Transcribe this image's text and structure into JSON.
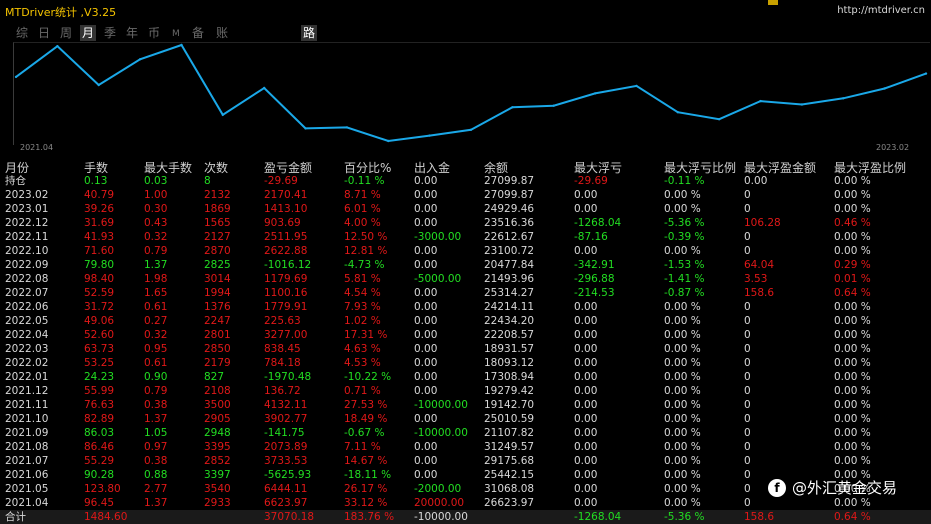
{
  "header": {
    "app_title": "MTDriver统计 ,V3.25",
    "url": "http://mtdriver.cn"
  },
  "tabs": [
    {
      "label": "综"
    },
    {
      "label": "日"
    },
    {
      "label": "周"
    },
    {
      "label": "月"
    },
    {
      "label": "季"
    },
    {
      "label": "年"
    },
    {
      "label": "币"
    },
    {
      "label": "M"
    },
    {
      "label": "备"
    },
    {
      "label": "账户"
    },
    {
      "label": "路径"
    }
  ],
  "chart_data": {
    "type": "line",
    "x_start_label": "2021.04",
    "x_end_label": "2023.02",
    "x": [
      "2021.04",
      "2021.05",
      "2021.06",
      "2021.07",
      "2021.08",
      "2021.09",
      "2021.10",
      "2021.11",
      "2021.12",
      "2022.01",
      "2022.02",
      "2022.03",
      "2022.04",
      "2022.05",
      "2022.06",
      "2022.07",
      "2022.08",
      "2022.09",
      "2022.10",
      "2022.11",
      "2022.12",
      "2023.01",
      "2023.02"
    ],
    "series": [
      {
        "values": [
          26623.97,
          31068.08,
          25442.15,
          29175.68,
          31249.57,
          21107.82,
          25010.59,
          19142.7,
          19279.42,
          17308.94,
          18093.12,
          18931.57,
          22208.57,
          22434.2,
          24214.11,
          25314.27,
          21493.96,
          20477.84,
          23100.72,
          22612.67,
          23516.36,
          24929.46,
          27099.87
        ]
      }
    ],
    "line_color": "#1aa8e8",
    "legend": false,
    "grid": false
  },
  "table": {
    "headers": [
      "月份",
      "手数",
      "最大手数",
      "次数",
      "盈亏金额",
      "百分比%",
      "出入金",
      "余额",
      "最大浮亏",
      "最大浮亏比例",
      "最大浮盈金额",
      "最大浮盈比例"
    ],
    "rows": [
      {
        "c": [
          "持仓",
          "0.13",
          "0.03",
          "8",
          "-29.69",
          "-0.11 %",
          "0.00",
          "27099.87",
          "-29.69",
          "-0.11 %",
          "0.00",
          "0.00 %"
        ],
        "k": [
          "white",
          "green",
          "green",
          "green",
          "red",
          "green",
          "white",
          "white",
          "red",
          "green",
          "white",
          "white"
        ]
      },
      {
        "c": [
          "2023.02",
          "40.79",
          "1.00",
          "2132",
          "2170.41",
          "8.71 %",
          "0.00",
          "27099.87",
          "0.00",
          "0.00 %",
          "0",
          "0.00 %"
        ],
        "k": [
          "white",
          "red",
          "red",
          "red",
          "red",
          "red",
          "white",
          "white",
          "white",
          "white",
          "white",
          "white"
        ]
      },
      {
        "c": [
          "2023.01",
          "39.26",
          "0.30",
          "1869",
          "1413.10",
          "6.01 %",
          "0.00",
          "24929.46",
          "0.00",
          "0.00 %",
          "0",
          "0.00 %"
        ],
        "k": [
          "white",
          "red",
          "red",
          "red",
          "red",
          "red",
          "white",
          "white",
          "white",
          "white",
          "white",
          "white"
        ]
      },
      {
        "c": [
          "2022.12",
          "31.69",
          "0.43",
          "1565",
          "903.69",
          "4.00 %",
          "0.00",
          "23516.36",
          "-1268.04",
          "-5.36 %",
          "106.28",
          "0.46 %"
        ],
        "k": [
          "white",
          "red",
          "red",
          "red",
          "red",
          "red",
          "white",
          "white",
          "green",
          "green",
          "red",
          "red"
        ]
      },
      {
        "c": [
          "2022.11",
          "41.93",
          "0.32",
          "2127",
          "2511.95",
          "12.50 %",
          "-3000.00",
          "22612.67",
          "-87.16",
          "-0.39 %",
          "0",
          "0.00 %"
        ],
        "k": [
          "white",
          "red",
          "red",
          "red",
          "red",
          "red",
          "green",
          "white",
          "green",
          "green",
          "white",
          "white"
        ]
      },
      {
        "c": [
          "2022.10",
          "71.60",
          "0.79",
          "2870",
          "2622.88",
          "12.81 %",
          "0.00",
          "23100.72",
          "0.00",
          "0.00 %",
          "0",
          "0.00 %"
        ],
        "k": [
          "white",
          "red",
          "red",
          "red",
          "red",
          "red",
          "white",
          "white",
          "white",
          "white",
          "white",
          "white"
        ]
      },
      {
        "c": [
          "2022.09",
          "79.80",
          "1.37",
          "2825",
          "-1016.12",
          "-4.73 %",
          "0.00",
          "20477.84",
          "-342.91",
          "-1.53 %",
          "64.04",
          "0.29 %"
        ],
        "k": [
          "white",
          "green",
          "green",
          "green",
          "green",
          "green",
          "white",
          "white",
          "green",
          "green",
          "red",
          "red"
        ]
      },
      {
        "c": [
          "2022.08",
          "98.40",
          "1.98",
          "3014",
          "1179.69",
          "5.81 %",
          "-5000.00",
          "21493.96",
          "-296.88",
          "-1.41 %",
          "3.53",
          "0.01 %"
        ],
        "k": [
          "white",
          "red",
          "red",
          "red",
          "red",
          "red",
          "green",
          "white",
          "green",
          "green",
          "red",
          "red"
        ]
      },
      {
        "c": [
          "2022.07",
          "52.59",
          "1.65",
          "1994",
          "1100.16",
          "4.54 %",
          "0.00",
          "25314.27",
          "-214.53",
          "-0.87 %",
          "158.6",
          "0.64 %"
        ],
        "k": [
          "white",
          "red",
          "red",
          "red",
          "red",
          "red",
          "white",
          "white",
          "green",
          "green",
          "red",
          "red"
        ]
      },
      {
        "c": [
          "2022.06",
          "31.72",
          "0.61",
          "1376",
          "1779.91",
          "7.93 %",
          "0.00",
          "24214.11",
          "0.00",
          "0.00 %",
          "0",
          "0.00 %"
        ],
        "k": [
          "white",
          "red",
          "red",
          "red",
          "red",
          "red",
          "white",
          "white",
          "white",
          "white",
          "white",
          "white"
        ]
      },
      {
        "c": [
          "2022.05",
          "49.06",
          "0.27",
          "2247",
          "225.63",
          "1.02 %",
          "0.00",
          "22434.20",
          "0.00",
          "0.00 %",
          "0",
          "0.00 %"
        ],
        "k": [
          "white",
          "red",
          "red",
          "red",
          "red",
          "red",
          "white",
          "white",
          "white",
          "white",
          "white",
          "white"
        ]
      },
      {
        "c": [
          "2022.04",
          "52.60",
          "0.32",
          "2801",
          "3277.00",
          "17.31 %",
          "0.00",
          "22208.57",
          "0.00",
          "0.00 %",
          "0",
          "0.00 %"
        ],
        "k": [
          "white",
          "red",
          "red",
          "red",
          "red",
          "red",
          "white",
          "white",
          "white",
          "white",
          "white",
          "white"
        ]
      },
      {
        "c": [
          "2022.03",
          "63.73",
          "0.95",
          "2850",
          "838.45",
          "4.63 %",
          "0.00",
          "18931.57",
          "0.00",
          "0.00 %",
          "0",
          "0.00 %"
        ],
        "k": [
          "white",
          "red",
          "red",
          "red",
          "red",
          "red",
          "white",
          "white",
          "white",
          "white",
          "white",
          "white"
        ]
      },
      {
        "c": [
          "2022.02",
          "53.25",
          "0.61",
          "2179",
          "784.18",
          "4.53 %",
          "0.00",
          "18093.12",
          "0.00",
          "0.00 %",
          "0",
          "0.00 %"
        ],
        "k": [
          "white",
          "red",
          "red",
          "red",
          "red",
          "red",
          "white",
          "white",
          "white",
          "white",
          "white",
          "white"
        ]
      },
      {
        "c": [
          "2022.01",
          "24.23",
          "0.90",
          "827",
          "-1970.48",
          "-10.22 %",
          "0.00",
          "17308.94",
          "0.00",
          "0.00 %",
          "0",
          "0.00 %"
        ],
        "k": [
          "white",
          "green",
          "green",
          "green",
          "green",
          "green",
          "white",
          "white",
          "white",
          "white",
          "white",
          "white"
        ]
      },
      {
        "c": [
          "2021.12",
          "55.99",
          "0.79",
          "2108",
          "136.72",
          "0.71 %",
          "0.00",
          "19279.42",
          "0.00",
          "0.00 %",
          "0",
          "0.00 %"
        ],
        "k": [
          "white",
          "red",
          "red",
          "red",
          "red",
          "red",
          "white",
          "white",
          "white",
          "white",
          "white",
          "white"
        ]
      },
      {
        "c": [
          "2021.11",
          "76.63",
          "0.38",
          "3500",
          "4132.11",
          "27.53 %",
          "-10000.00",
          "19142.70",
          "0.00",
          "0.00 %",
          "0",
          "0.00 %"
        ],
        "k": [
          "white",
          "red",
          "red",
          "red",
          "red",
          "red",
          "green",
          "white",
          "white",
          "white",
          "white",
          "white"
        ]
      },
      {
        "c": [
          "2021.10",
          "82.89",
          "1.37",
          "2905",
          "3902.77",
          "18.49 %",
          "0.00",
          "25010.59",
          "0.00",
          "0.00 %",
          "0",
          "0.00 %"
        ],
        "k": [
          "white",
          "red",
          "red",
          "red",
          "red",
          "red",
          "white",
          "white",
          "white",
          "white",
          "white",
          "white"
        ]
      },
      {
        "c": [
          "2021.09",
          "86.03",
          "1.05",
          "2948",
          "-141.75",
          "-0.67 %",
          "-10000.00",
          "21107.82",
          "0.00",
          "0.00 %",
          "0",
          "0.00 %"
        ],
        "k": [
          "white",
          "green",
          "green",
          "green",
          "green",
          "green",
          "green",
          "white",
          "white",
          "white",
          "white",
          "white"
        ]
      },
      {
        "c": [
          "2021.08",
          "86.46",
          "0.97",
          "3395",
          "2073.89",
          "7.11 %",
          "0.00",
          "31249.57",
          "0.00",
          "0.00 %",
          "0",
          "0.00 %"
        ],
        "k": [
          "white",
          "red",
          "red",
          "red",
          "red",
          "red",
          "white",
          "white",
          "white",
          "white",
          "white",
          "white"
        ]
      },
      {
        "c": [
          "2021.07",
          "55.29",
          "0.38",
          "2852",
          "3733.53",
          "14.67 %",
          "0.00",
          "29175.68",
          "0.00",
          "0.00 %",
          "0",
          "0.00 %"
        ],
        "k": [
          "white",
          "red",
          "red",
          "red",
          "red",
          "red",
          "white",
          "white",
          "white",
          "white",
          "white",
          "white"
        ]
      },
      {
        "c": [
          "2021.06",
          "90.28",
          "0.88",
          "3397",
          "-5625.93",
          "-18.11 %",
          "0.00",
          "25442.15",
          "0.00",
          "0.00 %",
          "0",
          "0.00 %"
        ],
        "k": [
          "white",
          "green",
          "green",
          "green",
          "green",
          "green",
          "white",
          "white",
          "white",
          "white",
          "white",
          "white"
        ]
      },
      {
        "c": [
          "2021.05",
          "123.80",
          "2.77",
          "3540",
          "6444.11",
          "26.17 %",
          "-2000.00",
          "31068.08",
          "0.00",
          "0.00 %",
          "0",
          "0.00 %"
        ],
        "k": [
          "white",
          "red",
          "red",
          "red",
          "red",
          "red",
          "green",
          "white",
          "white",
          "white",
          "white",
          "white"
        ]
      },
      {
        "c": [
          "2021.04",
          "96.45",
          "1.37",
          "2933",
          "6623.97",
          "33.12 %",
          "20000.00",
          "26623.97",
          "0.00",
          "0.00 %",
          "0",
          "0.00 %"
        ],
        "k": [
          "white",
          "red",
          "red",
          "red",
          "red",
          "red",
          "red",
          "white",
          "white",
          "white",
          "white",
          "white"
        ]
      }
    ],
    "total": {
      "c": [
        "合计",
        "1484.60",
        "",
        "",
        "37070.18",
        "183.76 %",
        "-10000.00",
        "",
        "-1268.04",
        "-5.36 %",
        "158.6",
        "0.64 %"
      ],
      "k": [
        "white",
        "red",
        "white",
        "white",
        "red",
        "red",
        "white",
        "white",
        "green",
        "green",
        "red",
        "red"
      ]
    }
  },
  "watermark": {
    "icon": "facebook-icon",
    "text": "@外汇黄金交易"
  }
}
